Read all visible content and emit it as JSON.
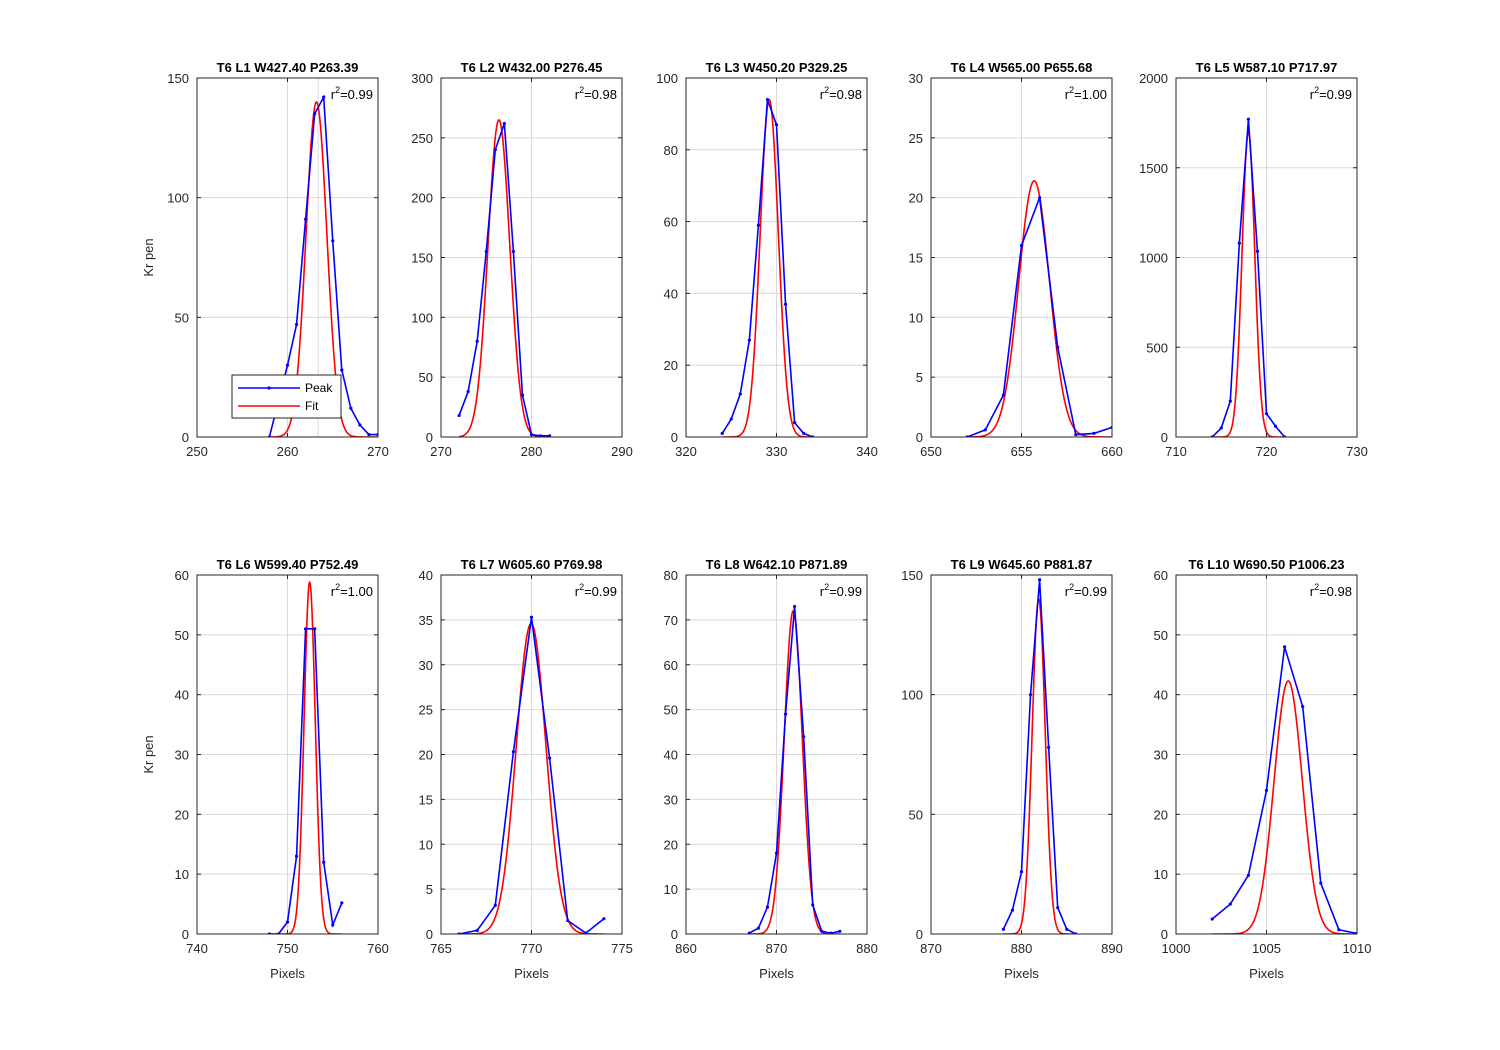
{
  "figure": {
    "row_ylabels": [
      "Kr pen",
      "Kr pen"
    ],
    "xlabel": "Pixels"
  },
  "colors": {
    "peak": "#0000ff",
    "fit": "#ff0000",
    "axes": "#262626",
    "grid": "#d9d9d9",
    "background": "#ffffff"
  },
  "legend": {
    "entries": [
      "Peak",
      "Fit"
    ],
    "placement": "lower-left of first panel"
  },
  "chart_data": [
    {
      "type": "line",
      "title": "T6 L1 W427.40 P263.39",
      "r2": "r²=0.99",
      "xlabel": "",
      "ylabel": "Kr pen",
      "xlim": [
        250,
        270
      ],
      "ylim": [
        0,
        150
      ],
      "xticks": [
        250,
        260,
        270
      ],
      "yticks": [
        0,
        50,
        100,
        150
      ],
      "grid_x": [
        263.39
      ],
      "series": [
        {
          "name": "Peak",
          "x": [
            258,
            259,
            260,
            261,
            262,
            263,
            264,
            265,
            266,
            267,
            268,
            269,
            270
          ],
          "y": [
            0,
            15,
            30,
            47,
            91,
            135,
            142,
            82,
            28,
            12,
            5,
            1,
            1
          ]
        },
        {
          "name": "Fit",
          "gaussian": {
            "amp": 140,
            "mu": 263.2,
            "sigma": 1.15
          },
          "xrange": [
            258,
            270
          ]
        }
      ]
    },
    {
      "type": "line",
      "title": "T6 L2 W432.00 P276.45",
      "r2": "r²=0.98",
      "xlabel": "",
      "ylabel": "",
      "xlim": [
        270,
        290
      ],
      "ylim": [
        0,
        300
      ],
      "xticks": [
        270,
        280,
        290
      ],
      "yticks": [
        0,
        50,
        100,
        150,
        200,
        250,
        300
      ],
      "grid_x": [
        280
      ],
      "series": [
        {
          "name": "Peak",
          "x": [
            272,
            273,
            274,
            275,
            276,
            277,
            278,
            279,
            280,
            281,
            282
          ],
          "y": [
            18,
            38,
            80,
            155,
            240,
            262,
            155,
            35,
            2,
            1,
            1
          ]
        },
        {
          "name": "Fit",
          "gaussian": {
            "amp": 265,
            "mu": 276.4,
            "sigma": 1.2
          },
          "xrange": [
            272,
            282
          ]
        }
      ]
    },
    {
      "type": "line",
      "title": "T6 L3 W450.20 P329.25",
      "r2": "r²=0.98",
      "xlabel": "",
      "ylabel": "",
      "xlim": [
        320,
        340
      ],
      "ylim": [
        0,
        100
      ],
      "xticks": [
        320,
        330,
        340
      ],
      "yticks": [
        0,
        20,
        40,
        60,
        80,
        100
      ],
      "grid_x": [
        330
      ],
      "series": [
        {
          "name": "Peak",
          "x": [
            324,
            325,
            326,
            327,
            328,
            329,
            330,
            331,
            332,
            333,
            334
          ],
          "y": [
            1,
            5,
            12,
            27,
            59,
            94,
            87,
            37,
            4,
            1,
            0
          ]
        },
        {
          "name": "Fit",
          "gaussian": {
            "amp": 94,
            "mu": 329.2,
            "sigma": 1.0
          },
          "xrange": [
            324,
            334
          ]
        }
      ]
    },
    {
      "type": "line",
      "title": "T6 L4 W565.00 P655.68",
      "r2": "r²=1.00",
      "xlabel": "",
      "ylabel": "",
      "xlim": [
        650,
        660
      ],
      "ylim": [
        0,
        30
      ],
      "xticks": [
        650,
        655,
        660
      ],
      "yticks": [
        0,
        5,
        10,
        15,
        20,
        25,
        30
      ],
      "grid_x": [
        655
      ],
      "series": [
        {
          "name": "Peak",
          "x": [
            652,
            653,
            654,
            655,
            656,
            657,
            658,
            659,
            660
          ],
          "y": [
            0,
            0.6,
            3.5,
            16,
            20,
            7.5,
            0.2,
            0.3,
            0.8
          ]
        },
        {
          "name": "Fit",
          "gaussian": {
            "amp": 21.4,
            "mu": 655.7,
            "sigma": 0.85
          },
          "xrange": [
            652,
            660
          ]
        }
      ]
    },
    {
      "type": "line",
      "title": "T6 L5 W587.10 P717.97",
      "r2": "r²=0.99",
      "xlabel": "",
      "ylabel": "",
      "xlim": [
        710,
        730
      ],
      "ylim": [
        0,
        2000
      ],
      "xticks": [
        710,
        720,
        730
      ],
      "yticks": [
        0,
        500,
        1000,
        1500,
        2000
      ],
      "grid_x": [
        720
      ],
      "series": [
        {
          "name": "Peak",
          "x": [
            714,
            715,
            716,
            717,
            718,
            719,
            720,
            721,
            722
          ],
          "y": [
            0,
            50,
            200,
            1080,
            1770,
            1035,
            130,
            60,
            0
          ]
        },
        {
          "name": "Fit",
          "gaussian": {
            "amp": 1700,
            "mu": 718.0,
            "sigma": 0.7
          },
          "xrange": [
            714,
            722
          ]
        }
      ]
    },
    {
      "type": "line",
      "title": "T6 L6 W599.40 P752.49",
      "r2": "r²=1.00",
      "xlabel": "Pixels",
      "ylabel": "Kr pen",
      "xlim": [
        740,
        760
      ],
      "ylim": [
        0,
        60
      ],
      "xticks": [
        740,
        750,
        760
      ],
      "yticks": [
        0,
        10,
        20,
        30,
        40,
        50,
        60
      ],
      "grid_x": [
        750
      ],
      "series": [
        {
          "name": "Peak",
          "x": [
            748,
            749,
            750,
            751,
            752,
            753,
            754,
            755,
            756
          ],
          "y": [
            0,
            0,
            2,
            13,
            51,
            51,
            12,
            1.5,
            5.2
          ]
        },
        {
          "name": "Fit",
          "gaussian": {
            "amp": 58.8,
            "mu": 752.45,
            "sigma": 0.62
          },
          "xrange": [
            748,
            756
          ]
        }
      ]
    },
    {
      "type": "line",
      "title": "T6 L7 W605.60 P769.98",
      "r2": "r²=0.99",
      "xlabel": "Pixels",
      "ylabel": "",
      "xlim": [
        765,
        775
      ],
      "ylim": [
        0,
        40
      ],
      "xticks": [
        765,
        770,
        775
      ],
      "yticks": [
        0,
        5,
        10,
        15,
        20,
        25,
        30,
        35,
        40
      ],
      "grid_x": [
        770
      ],
      "series": [
        {
          "name": "Peak",
          "x": [
            766,
            767,
            768,
            769,
            770,
            771,
            772,
            773,
            774
          ],
          "y": [
            0,
            0.4,
            3.2,
            20.3,
            35.3,
            19.6,
            1.5,
            0.1,
            1.7
          ]
        },
        {
          "name": "Fit",
          "gaussian": {
            "amp": 34.6,
            "mu": 769.98,
            "sigma": 0.82
          },
          "xrange": [
            766,
            774
          ]
        }
      ]
    },
    {
      "type": "line",
      "title": "T6 L8 W642.10 P871.89",
      "r2": "r²=0.99",
      "xlabel": "Pixels",
      "ylabel": "",
      "xlim": [
        860,
        880
      ],
      "ylim": [
        0,
        80
      ],
      "xticks": [
        860,
        870,
        880
      ],
      "yticks": [
        0,
        10,
        20,
        30,
        40,
        50,
        60,
        70,
        80
      ],
      "grid_x": [
        870
      ],
      "series": [
        {
          "name": "Peak",
          "x": [
            867,
            868,
            869,
            870,
            871,
            872,
            873,
            874,
            875,
            876,
            877
          ],
          "y": [
            0.2,
            1.3,
            6,
            18,
            49,
            73,
            44,
            6.5,
            0.6,
            0.2,
            0.6
          ]
        },
        {
          "name": "Fit",
          "gaussian": {
            "amp": 72,
            "mu": 871.85,
            "sigma": 1.0
          },
          "xrange": [
            867,
            877
          ]
        }
      ]
    },
    {
      "type": "line",
      "title": "T6 L9 W645.60 P881.87",
      "r2": "r²=0.99",
      "xlabel": "Pixels",
      "ylabel": "",
      "xlim": [
        870,
        890
      ],
      "ylim": [
        0,
        150
      ],
      "xticks": [
        870,
        880,
        890
      ],
      "yticks": [
        0,
        50,
        100,
        150
      ],
      "grid_x": [
        880
      ],
      "series": [
        {
          "name": "Peak",
          "x": [
            878,
            879,
            880,
            881,
            882,
            883,
            884,
            885,
            886
          ],
          "y": [
            2,
            10,
            26,
            100,
            148,
            78,
            11,
            2,
            0
          ]
        },
        {
          "name": "Fit",
          "gaussian": {
            "amp": 140,
            "mu": 881.9,
            "sigma": 0.72
          },
          "xrange": [
            878,
            886
          ]
        }
      ]
    },
    {
      "type": "line",
      "title": "T6 L10 W690.50 P1006.23",
      "r2": "r²=0.98",
      "xlabel": "Pixels",
      "ylabel": "",
      "xlim": [
        1000,
        1010
      ],
      "ylim": [
        0,
        60
      ],
      "xticks": [
        1000,
        1005,
        1010
      ],
      "yticks": [
        0,
        10,
        20,
        30,
        40,
        50,
        60
      ],
      "grid_x": [
        1005
      ],
      "series": [
        {
          "name": "Peak",
          "x": [
            1002,
            1003,
            1004,
            1005,
            1006,
            1007,
            1008,
            1009,
            1010
          ],
          "y": [
            2.5,
            5,
            9.8,
            24,
            48,
            38,
            8.5,
            0.7,
            0.1
          ]
        },
        {
          "name": "Fit",
          "gaussian": {
            "amp": 42.3,
            "mu": 1006.2,
            "sigma": 0.78
          },
          "xrange": [
            1002,
            1010
          ]
        }
      ]
    }
  ]
}
